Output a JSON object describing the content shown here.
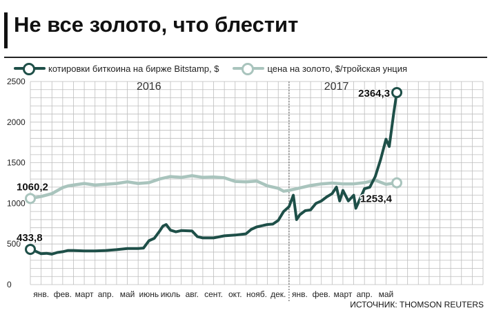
{
  "title": "Не все золото, что блестит",
  "source": "ИСТОЧНИК: THOMSON REUTERS",
  "colors": {
    "bitcoin": "#1e4f48",
    "gold": "#a9c4bd",
    "grid": "#bdbdbd",
    "divider": "#777777"
  },
  "legend": [
    {
      "label": "котировки биткоина на бирже Bitstamp, $",
      "series": "bitcoin"
    },
    {
      "label": "цена на золото, $/тройская унция",
      "series": "gold"
    }
  ],
  "chart_data": {
    "type": "line",
    "ylim": [
      0,
      2500
    ],
    "yticks": [
      0,
      500,
      1000,
      1500,
      2000,
      2500
    ],
    "ytick_labels": [
      "0",
      "500",
      "1000",
      "1500",
      "2000",
      "2500"
    ],
    "xlim": [
      0,
      21
    ],
    "months": [
      {
        "label": "янв.",
        "x": 0.5
      },
      {
        "label": "фев.",
        "x": 1.5
      },
      {
        "label": "март",
        "x": 2.5
      },
      {
        "label": "апр.",
        "x": 3.5
      },
      {
        "label": "май",
        "x": 4.5
      },
      {
        "label": "июнь",
        "x": 5.5
      },
      {
        "label": "июль",
        "x": 6.5
      },
      {
        "label": "авг.",
        "x": 7.5
      },
      {
        "label": "сент.",
        "x": 8.5
      },
      {
        "label": "окт.",
        "x": 9.5
      },
      {
        "label": "нояб.",
        "x": 10.5
      },
      {
        "label": "дек.",
        "x": 11.5
      },
      {
        "label": "янв.",
        "x": 12.5
      },
      {
        "label": "фев.",
        "x": 13.5
      },
      {
        "label": "март",
        "x": 14.5
      },
      {
        "label": "апр.",
        "x": 15.5
      },
      {
        "label": "май",
        "x": 16.5
      }
    ],
    "years": [
      {
        "label": "2016",
        "x": 5.5
      },
      {
        "label": "2017",
        "x": 14.2
      }
    ],
    "year_divider_x": 12,
    "series": [
      {
        "name": "котировки биткоина на бирже Bitstamp, $",
        "key": "bitcoin",
        "points": [
          [
            0,
            434
          ],
          [
            0.25,
            410
          ],
          [
            0.5,
            380
          ],
          [
            0.75,
            385
          ],
          [
            1.0,
            375
          ],
          [
            1.25,
            395
          ],
          [
            1.5,
            405
          ],
          [
            1.75,
            420
          ],
          [
            2.0,
            420
          ],
          [
            2.5,
            415
          ],
          [
            3.0,
            415
          ],
          [
            3.5,
            420
          ],
          [
            4.0,
            430
          ],
          [
            4.5,
            445
          ],
          [
            5.0,
            445
          ],
          [
            5.25,
            450
          ],
          [
            5.5,
            540
          ],
          [
            5.75,
            570
          ],
          [
            6.0,
            660
          ],
          [
            6.15,
            720
          ],
          [
            6.3,
            740
          ],
          [
            6.5,
            670
          ],
          [
            6.75,
            650
          ],
          [
            7.0,
            665
          ],
          [
            7.5,
            660
          ],
          [
            7.75,
            590
          ],
          [
            8.0,
            575
          ],
          [
            8.5,
            575
          ],
          [
            9.0,
            600
          ],
          [
            9.5,
            610
          ],
          [
            10.0,
            625
          ],
          [
            10.25,
            680
          ],
          [
            10.5,
            710
          ],
          [
            11.0,
            740
          ],
          [
            11.25,
            745
          ],
          [
            11.5,
            790
          ],
          [
            11.75,
            900
          ],
          [
            12.0,
            960
          ],
          [
            12.2,
            1100
          ],
          [
            12.35,
            800
          ],
          [
            12.5,
            860
          ],
          [
            12.75,
            910
          ],
          [
            13.0,
            920
          ],
          [
            13.25,
            1000
          ],
          [
            13.5,
            1030
          ],
          [
            13.75,
            1080
          ],
          [
            14.0,
            1120
          ],
          [
            14.2,
            1200
          ],
          [
            14.35,
            1030
          ],
          [
            14.5,
            1160
          ],
          [
            14.75,
            1030
          ],
          [
            15.0,
            1100
          ],
          [
            15.1,
            940
          ],
          [
            15.25,
            1030
          ],
          [
            15.5,
            1180
          ],
          [
            15.75,
            1200
          ],
          [
            16.0,
            1330
          ],
          [
            16.25,
            1540
          ],
          [
            16.5,
            1790
          ],
          [
            16.65,
            1700
          ],
          [
            16.85,
            2100
          ],
          [
            17.0,
            2364.3
          ]
        ]
      },
      {
        "name": "цена на золото, $/тройская унция",
        "key": "gold",
        "points": [
          [
            0,
            1060.2
          ],
          [
            0.5,
            1085
          ],
          [
            1.0,
            1120
          ],
          [
            1.5,
            1195
          ],
          [
            1.75,
            1215
          ],
          [
            2.0,
            1225
          ],
          [
            2.5,
            1245
          ],
          [
            3.0,
            1225
          ],
          [
            3.5,
            1235
          ],
          [
            4.0,
            1245
          ],
          [
            4.5,
            1265
          ],
          [
            5.0,
            1245
          ],
          [
            5.5,
            1255
          ],
          [
            6.0,
            1300
          ],
          [
            6.5,
            1330
          ],
          [
            7.0,
            1320
          ],
          [
            7.5,
            1340
          ],
          [
            8.0,
            1320
          ],
          [
            8.5,
            1325
          ],
          [
            9.0,
            1315
          ],
          [
            9.5,
            1270
          ],
          [
            10.0,
            1265
          ],
          [
            10.5,
            1275
          ],
          [
            11.0,
            1215
          ],
          [
            11.5,
            1185
          ],
          [
            11.75,
            1150
          ],
          [
            12.0,
            1160
          ],
          [
            12.5,
            1190
          ],
          [
            13.0,
            1220
          ],
          [
            13.5,
            1240
          ],
          [
            14.0,
            1250
          ],
          [
            14.5,
            1240
          ],
          [
            15.0,
            1240
          ],
          [
            15.5,
            1255
          ],
          [
            16.0,
            1285
          ],
          [
            16.5,
            1235
          ],
          [
            17.0,
            1253.4
          ]
        ]
      }
    ],
    "annotations": [
      {
        "text": "433,8",
        "series": "bitcoin",
        "at": "start"
      },
      {
        "text": "1060,2",
        "series": "gold",
        "at": "start"
      },
      {
        "text": "2364,3",
        "series": "bitcoin",
        "at": "end"
      },
      {
        "text": "1253,4",
        "series": "gold",
        "at": "end"
      }
    ]
  }
}
